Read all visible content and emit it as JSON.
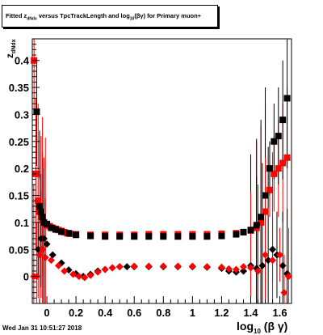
{
  "title_parts": {
    "pre": "Fitted  z",
    "sub1": "dNdx",
    "mid": "  versus TpcTrackLength and log",
    "sub2": "10",
    "post": "(βγ) for Primary muon+"
  },
  "timestamp": "Wed Jan 31 10:51:27 2018",
  "chart_data": {
    "type": "scatter",
    "title": "Fitted z_dNdx versus TpcTrackLength and log10(βγ) for Primary muon+",
    "xlabel": "log10 (β γ)",
    "ylabel": "z_dNdx",
    "xlim": [
      -0.1,
      1.68
    ],
    "ylim": [
      -0.05,
      0.44
    ],
    "xticks": [
      "0",
      "0.2",
      "0.4",
      "0.6",
      "0.8",
      "1",
      "1.2",
      "1.4",
      "1.6"
    ],
    "yticks": [
      "0",
      "0.05",
      "0.1",
      "0.15",
      "0.2",
      "0.25",
      "0.3",
      "0.35",
      "0.4"
    ],
    "grid": false,
    "colors": {
      "black": "#000000",
      "red": "#ff0000"
    },
    "series": [
      {
        "color": "#ff0000",
        "marker": "square",
        "points": [
          [
            -0.088,
            0.4
          ],
          [
            -0.075,
            0.19
          ],
          [
            -0.06,
            0.14
          ],
          [
            -0.05,
            0.12
          ],
          [
            -0.04,
            0.11
          ],
          [
            -0.03,
            0.105
          ],
          [
            -0.02,
            0.1
          ],
          [
            -0.01,
            0.097
          ],
          [
            0.0,
            0.095
          ],
          [
            0.02,
            0.093
          ],
          [
            0.04,
            0.09
          ],
          [
            0.06,
            0.088
          ],
          [
            0.08,
            0.086
          ],
          [
            0.1,
            0.084
          ],
          [
            0.12,
            0.082
          ],
          [
            0.14,
            0.08
          ],
          [
            0.16,
            0.079
          ],
          [
            0.2,
            0.078
          ],
          [
            0.3,
            0.077
          ],
          [
            0.4,
            0.077
          ],
          [
            0.5,
            0.077
          ],
          [
            0.6,
            0.077
          ],
          [
            0.7,
            0.078
          ],
          [
            0.8,
            0.078
          ],
          [
            0.9,
            0.078
          ],
          [
            1.0,
            0.078
          ],
          [
            1.1,
            0.078
          ],
          [
            1.2,
            0.079
          ],
          [
            1.3,
            0.08
          ],
          [
            1.35,
            0.082
          ],
          [
            1.4,
            0.085
          ],
          [
            1.44,
            0.09
          ],
          [
            1.47,
            0.1
          ],
          [
            1.5,
            0.12
          ],
          [
            1.53,
            0.16
          ],
          [
            1.56,
            0.19
          ],
          [
            1.59,
            0.2
          ],
          [
            1.62,
            0.21
          ],
          [
            1.65,
            0.22
          ]
        ]
      },
      {
        "color": "#000000",
        "marker": "square",
        "points": [
          [
            -0.07,
            0.305
          ],
          [
            -0.05,
            0.13
          ],
          [
            -0.04,
            0.12
          ],
          [
            -0.03,
            0.11
          ],
          [
            -0.02,
            0.1
          ],
          [
            0.0,
            0.097
          ],
          [
            0.03,
            0.09
          ],
          [
            0.06,
            0.087
          ],
          [
            0.1,
            0.083
          ],
          [
            0.15,
            0.08
          ],
          [
            0.2,
            0.077
          ],
          [
            0.3,
            0.075
          ],
          [
            0.4,
            0.074
          ],
          [
            0.5,
            0.074
          ],
          [
            0.6,
            0.074
          ],
          [
            0.7,
            0.074
          ],
          [
            0.8,
            0.074
          ],
          [
            0.9,
            0.074
          ],
          [
            1.0,
            0.074
          ],
          [
            1.1,
            0.074
          ],
          [
            1.2,
            0.075
          ],
          [
            1.3,
            0.078
          ],
          [
            1.35,
            0.082
          ],
          [
            1.4,
            0.086
          ],
          [
            1.44,
            0.095
          ],
          [
            1.47,
            0.11
          ],
          [
            1.5,
            0.15
          ],
          [
            1.53,
            0.2
          ],
          [
            1.56,
            0.25
          ],
          [
            1.59,
            0.26
          ],
          [
            1.62,
            0.29
          ],
          [
            1.65,
            0.33
          ]
        ]
      },
      {
        "color": "#000000",
        "marker": "diamond",
        "points": [
          [
            -0.06,
            0.05
          ],
          [
            -0.04,
            0.07
          ],
          [
            -0.02,
            0.07
          ],
          [
            0.0,
            0.06
          ],
          [
            0.04,
            0.04
          ],
          [
            0.1,
            0.025
          ],
          [
            0.15,
            0.012
          ],
          [
            0.2,
            0.005
          ],
          [
            0.25,
            0.0
          ],
          [
            0.3,
            0.004
          ],
          [
            0.35,
            0.01
          ],
          [
            0.4,
            0.013
          ],
          [
            0.45,
            0.016
          ],
          [
            0.5,
            0.018
          ],
          [
            0.55,
            0.018
          ],
          [
            0.6,
            0.018
          ],
          [
            0.7,
            0.018
          ],
          [
            0.8,
            0.018
          ],
          [
            0.9,
            0.018
          ],
          [
            1.0,
            0.018
          ],
          [
            1.1,
            0.017
          ],
          [
            1.2,
            0.015
          ],
          [
            1.25,
            0.01
          ],
          [
            1.3,
            0.008
          ],
          [
            1.35,
            0.01
          ],
          [
            1.4,
            0.02
          ],
          [
            1.44,
            0.015
          ],
          [
            1.48,
            0.02
          ],
          [
            1.52,
            0.03
          ],
          [
            1.55,
            0.05
          ],
          [
            1.58,
            0.04
          ],
          [
            1.62,
            0.02
          ],
          [
            1.65,
            0.005
          ]
        ]
      },
      {
        "color": "#ff0000",
        "marker": "diamond",
        "points": [
          [
            -0.09,
            0.0
          ],
          [
            -0.07,
            0.0
          ],
          [
            -0.05,
            0.04
          ],
          [
            -0.03,
            0.05
          ],
          [
            -0.01,
            0.035
          ],
          [
            0.03,
            0.03
          ],
          [
            0.08,
            0.02
          ],
          [
            0.12,
            0.01
          ],
          [
            0.18,
            0.004
          ],
          [
            0.22,
            0.0
          ],
          [
            0.26,
            -0.002
          ],
          [
            0.3,
            0.002
          ],
          [
            0.35,
            0.008
          ],
          [
            0.4,
            0.013
          ],
          [
            0.45,
            0.016
          ],
          [
            0.5,
            0.018
          ],
          [
            0.6,
            0.019
          ],
          [
            0.7,
            0.019
          ],
          [
            0.8,
            0.019
          ],
          [
            0.9,
            0.019
          ],
          [
            1.0,
            0.019
          ],
          [
            1.1,
            0.018
          ],
          [
            1.2,
            0.017
          ],
          [
            1.25,
            0.014
          ],
          [
            1.3,
            0.013
          ],
          [
            1.35,
            0.018
          ],
          [
            1.4,
            0.016
          ],
          [
            1.45,
            0.01
          ],
          [
            1.5,
            0.04
          ],
          [
            1.55,
            0.03
          ],
          [
            1.6,
            0.04
          ],
          [
            1.63,
            -0.03
          ],
          [
            1.66,
            0.0
          ]
        ]
      }
    ]
  }
}
